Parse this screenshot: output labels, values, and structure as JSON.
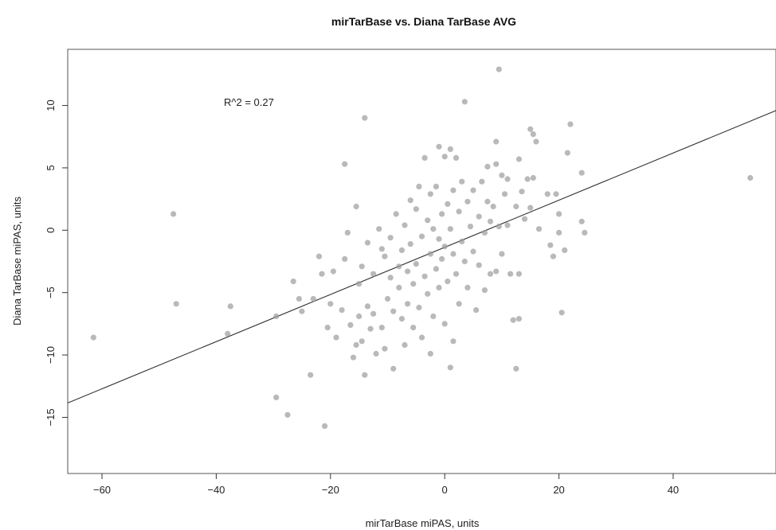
{
  "chart_data": {
    "type": "scatter",
    "title": "mirTarBase vs. Diana TarBase AVG",
    "xlabel": "mirTarBase miPAS, units",
    "ylabel": "Diana TarBase miPAS, units",
    "xlim": [
      -66,
      58
    ],
    "ylim": [
      -19.5,
      14.5
    ],
    "x_ticks": [
      -60,
      -40,
      -20,
      0,
      20,
      40
    ],
    "y_ticks": [
      -15,
      -10,
      -5,
      0,
      5,
      10
    ],
    "grid": false,
    "annotation": "R^2 = 0.27",
    "point_color": "#9e9e9e",
    "line_color": "#333333",
    "fit_line": {
      "slope": 0.189,
      "intercept": -1.37
    },
    "points": [
      [
        -61.5,
        -8.6
      ],
      [
        -47.5,
        1.3
      ],
      [
        -47,
        -5.9
      ],
      [
        -38,
        -8.3
      ],
      [
        -37.5,
        -6.1
      ],
      [
        -29.5,
        -6.9
      ],
      [
        -29.5,
        -13.4
      ],
      [
        -27.5,
        -14.8
      ],
      [
        -26.5,
        -4.1
      ],
      [
        -25.5,
        -5.5
      ],
      [
        -25,
        -6.5
      ],
      [
        -23.5,
        -11.6
      ],
      [
        -23,
        -5.5
      ],
      [
        -22,
        -2.1
      ],
      [
        -21.5,
        -3.5
      ],
      [
        -21,
        -15.7
      ],
      [
        -20.5,
        -7.8
      ],
      [
        -20,
        -5.9
      ],
      [
        -19.5,
        -3.3
      ],
      [
        -19,
        -8.6
      ],
      [
        -18,
        -6.4
      ],
      [
        -17.5,
        -2.3
      ],
      [
        -17.5,
        5.3
      ],
      [
        -17,
        -0.2
      ],
      [
        -16.5,
        -7.6
      ],
      [
        -16,
        -10.2
      ],
      [
        -15.5,
        -9.2
      ],
      [
        -15.5,
        1.9
      ],
      [
        -15,
        -4.3
      ],
      [
        -15,
        -6.9
      ],
      [
        -14.5,
        -2.9
      ],
      [
        -14.5,
        -8.9
      ],
      [
        -14,
        9
      ],
      [
        -14,
        -11.6
      ],
      [
        -13.5,
        -1
      ],
      [
        -13.5,
        -6.1
      ],
      [
        -13,
        -7.9
      ],
      [
        -12.5,
        -3.5
      ],
      [
        -12.5,
        -6.7
      ],
      [
        -12,
        -9.9
      ],
      [
        -11.5,
        0.1
      ],
      [
        -11,
        -1.5
      ],
      [
        -11,
        -7.8
      ],
      [
        -10.5,
        -2.1
      ],
      [
        -10.5,
        -9.5
      ],
      [
        -10,
        -5.5
      ],
      [
        -9.5,
        -0.6
      ],
      [
        -9.5,
        -3.8
      ],
      [
        -9,
        -6.5
      ],
      [
        -9,
        -11.1
      ],
      [
        -8.5,
        1.3
      ],
      [
        -8,
        -2.9
      ],
      [
        -8,
        -4.6
      ],
      [
        -7.5,
        -7.1
      ],
      [
        -7.5,
        -1.6
      ],
      [
        -7,
        0.4
      ],
      [
        -7,
        -9.2
      ],
      [
        -6.5,
        -3.3
      ],
      [
        -6.5,
        -5.9
      ],
      [
        -6,
        2.4
      ],
      [
        -6,
        -1.1
      ],
      [
        -5.5,
        -7.8
      ],
      [
        -5.5,
        -4.3
      ],
      [
        -5,
        1.7
      ],
      [
        -5,
        -2.7
      ],
      [
        -4.5,
        -6.2
      ],
      [
        -4.5,
        3.5
      ],
      [
        -4,
        -0.5
      ],
      [
        -4,
        -8.6
      ],
      [
        -3.5,
        5.8
      ],
      [
        -3.5,
        -3.7
      ],
      [
        -3,
        0.8
      ],
      [
        -3,
        -5.1
      ],
      [
        -2.5,
        2.9
      ],
      [
        -2.5,
        -1.9
      ],
      [
        -2.5,
        -9.9
      ],
      [
        -2,
        0.1
      ],
      [
        -2,
        -6.9
      ],
      [
        -1.5,
        3.5
      ],
      [
        -1.5,
        -3.1
      ],
      [
        -1,
        -0.7
      ],
      [
        -1,
        6.7
      ],
      [
        -1,
        -4.6
      ],
      [
        -0.5,
        1.3
      ],
      [
        -0.5,
        -2.3
      ],
      [
        0,
        5.9
      ],
      [
        0,
        -1.3
      ],
      [
        0,
        -7.5
      ],
      [
        0.5,
        2.1
      ],
      [
        0.5,
        -4.1
      ],
      [
        1,
        6.5
      ],
      [
        1,
        0.1
      ],
      [
        1,
        -11
      ],
      [
        1.5,
        3.2
      ],
      [
        1.5,
        -1.9
      ],
      [
        1.5,
        -8.9
      ],
      [
        2,
        5.8
      ],
      [
        2,
        -3.5
      ],
      [
        2.5,
        1.5
      ],
      [
        2.5,
        -5.9
      ],
      [
        3,
        3.9
      ],
      [
        3,
        -0.9
      ],
      [
        3.5,
        -2.5
      ],
      [
        3.5,
        10.3
      ],
      [
        4,
        2.3
      ],
      [
        4,
        -4.6
      ],
      [
        4.5,
        0.3
      ],
      [
        5,
        3.2
      ],
      [
        5,
        -1.7
      ],
      [
        5.5,
        -6.4
      ],
      [
        6,
        1.1
      ],
      [
        6,
        -2.8
      ],
      [
        6.5,
        3.9
      ],
      [
        7,
        -0.2
      ],
      [
        7,
        -4.8
      ],
      [
        7.5,
        2.3
      ],
      [
        7.5,
        5.1
      ],
      [
        8,
        0.7
      ],
      [
        8,
        -3.5
      ],
      [
        8.5,
        1.9
      ],
      [
        9,
        7.1
      ],
      [
        9,
        5.3
      ],
      [
        9,
        -3.3
      ],
      [
        9.5,
        0.3
      ],
      [
        9.5,
        12.9
      ],
      [
        10,
        4.4
      ],
      [
        10,
        -1.9
      ],
      [
        10.5,
        2.9
      ],
      [
        11,
        4.1
      ],
      [
        11,
        0.4
      ],
      [
        11.5,
        -3.5
      ],
      [
        12,
        -7.2
      ],
      [
        12.5,
        1.9
      ],
      [
        12.5,
        -11.1
      ],
      [
        13,
        5.7
      ],
      [
        13,
        -3.5
      ],
      [
        13,
        -7.1
      ],
      [
        13.5,
        3.1
      ],
      [
        14,
        0.9
      ],
      [
        14.5,
        4.1
      ],
      [
        15,
        1.8
      ],
      [
        15,
        8.1
      ],
      [
        15.5,
        4.2
      ],
      [
        15.5,
        7.7
      ],
      [
        16,
        7.1
      ],
      [
        16.5,
        0.1
      ],
      [
        18,
        2.9
      ],
      [
        18.5,
        -1.2
      ],
      [
        19,
        -2.1
      ],
      [
        19.5,
        2.9
      ],
      [
        20,
        1.3
      ],
      [
        20,
        -0.2
      ],
      [
        20.5,
        -6.6
      ],
      [
        21,
        -1.6
      ],
      [
        21.5,
        6.2
      ],
      [
        22,
        8.5
      ],
      [
        24,
        4.6
      ],
      [
        24,
        0.7
      ],
      [
        24.5,
        -0.2
      ],
      [
        53.5,
        4.2
      ]
    ]
  }
}
